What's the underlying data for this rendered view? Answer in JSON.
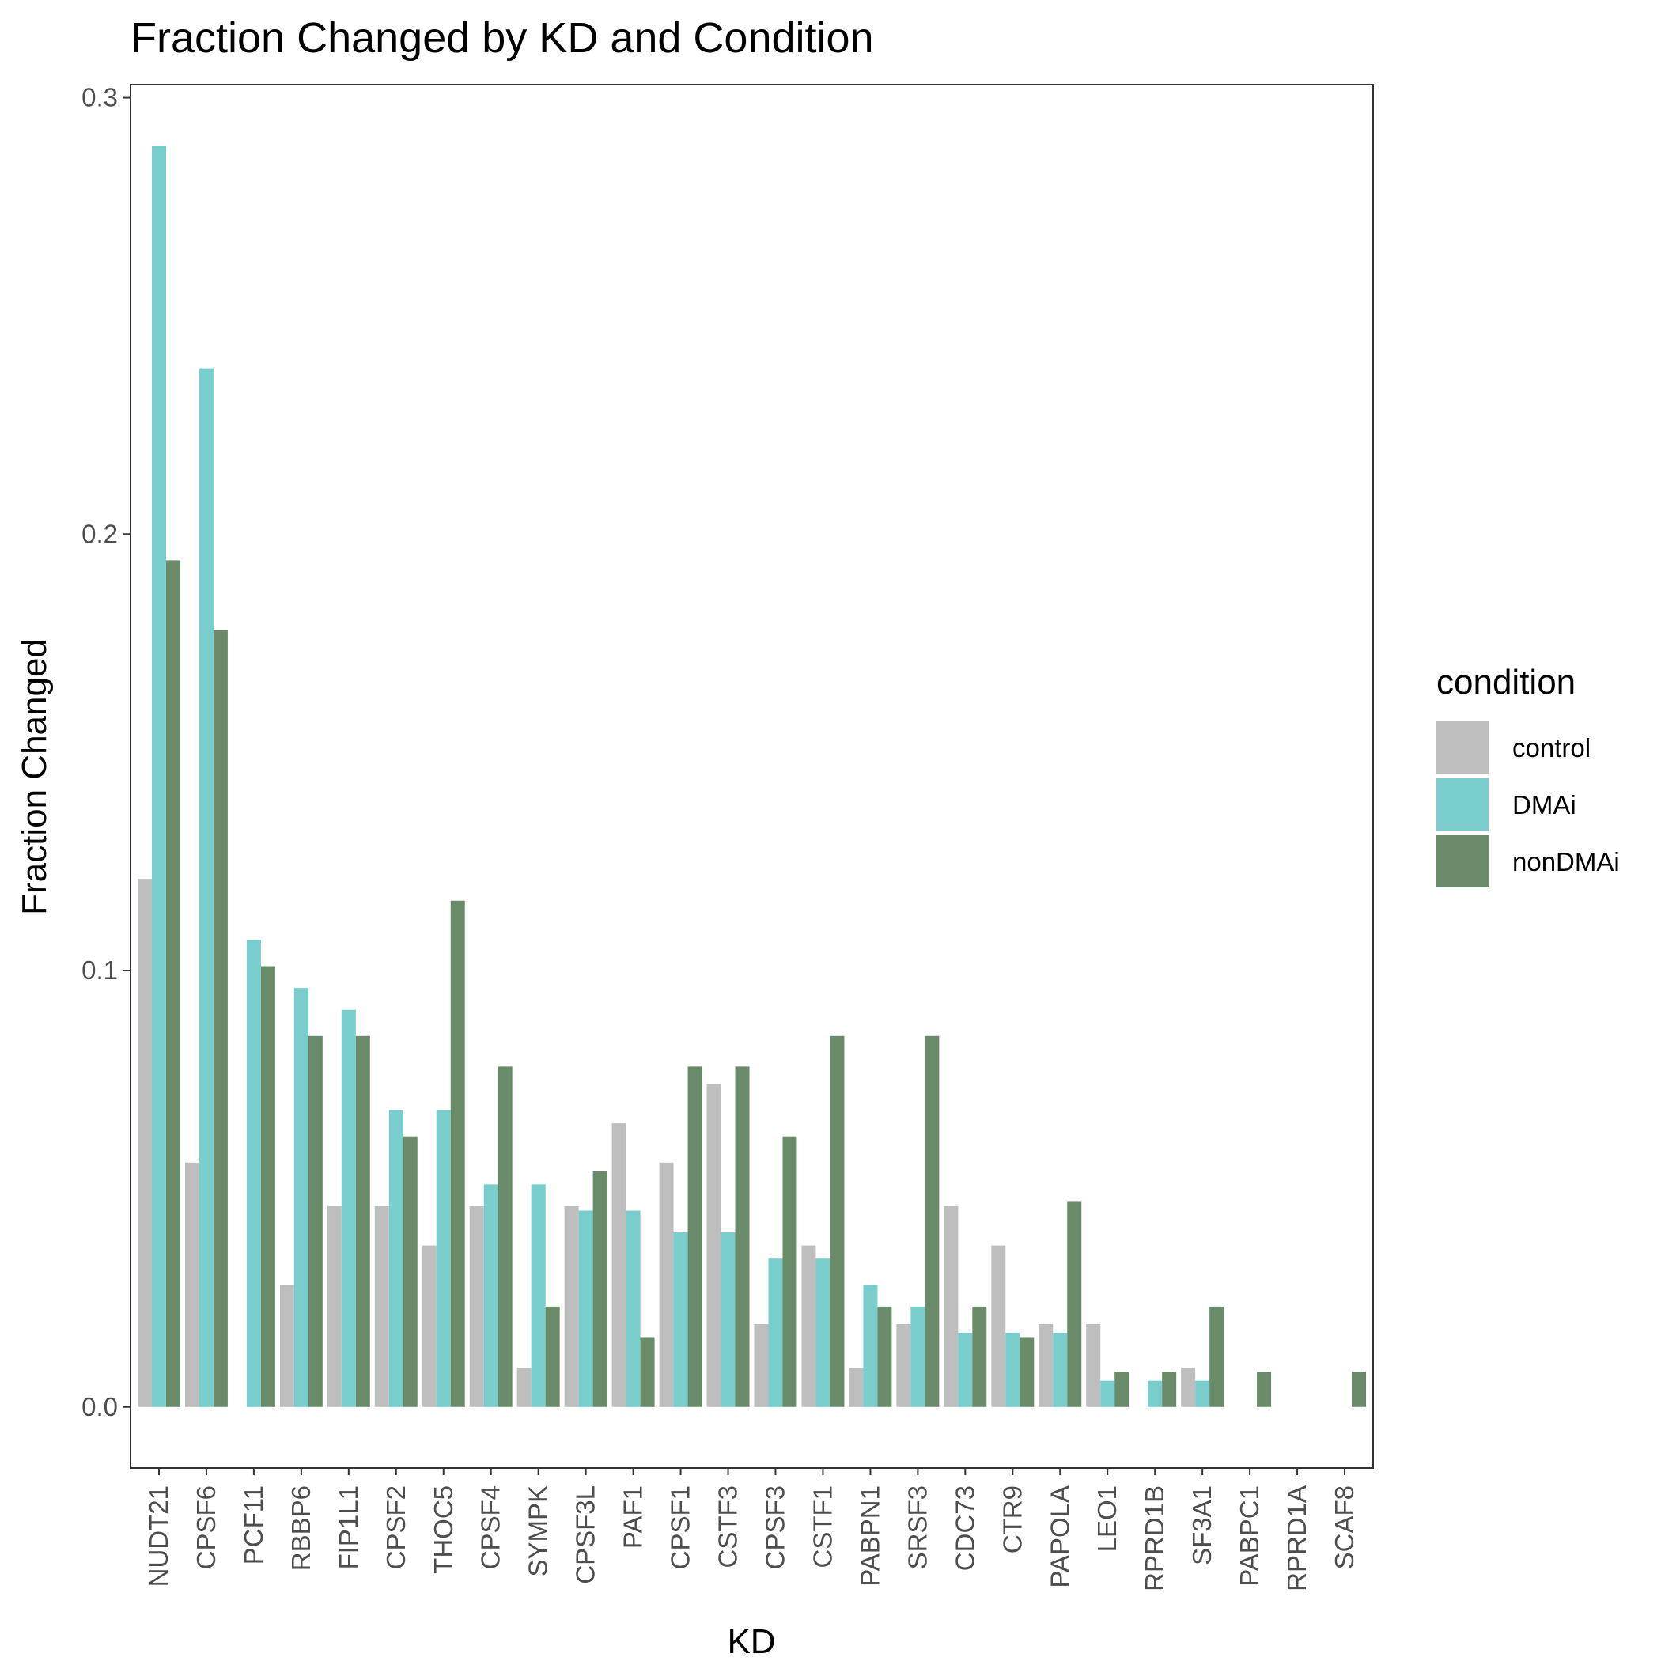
{
  "chart_data": {
    "type": "bar",
    "title": "Fraction Changed by KD and Condition",
    "xlabel": "KD",
    "ylabel": "Fraction Changed",
    "ylim": [
      -0.014,
      0.303
    ],
    "yticks": [
      "0.0",
      "0.1",
      "0.2",
      "0.3"
    ],
    "ytick_values": [
      0,
      0.1,
      0.2,
      0.3
    ],
    "grid": false,
    "legend_placement": "right",
    "legend_title": "condition",
    "categories": [
      "NUDT21",
      "CPSF6",
      "PCF11",
      "RBBP6",
      "FIP1L1",
      "CPSF2",
      "THOC5",
      "CPSF4",
      "SYMPK",
      "CPSF3L",
      "PAF1",
      "CPSF1",
      "CSTF3",
      "CPSF3",
      "CSTF1",
      "PABPN1",
      "SRSF3",
      "CDC73",
      "CTR9",
      "PAPOLA",
      "LEO1",
      "RPRD1B",
      "SF3A1",
      "PABPC1",
      "RPRD1A",
      "SCAF8"
    ],
    "series": [
      {
        "name": "control",
        "color": "#bebebe",
        "values": [
          0.121,
          0.056,
          0,
          0.028,
          0.046,
          0.046,
          0.037,
          0.046,
          0.009,
          0.046,
          0.065,
          0.056,
          0.074,
          0.019,
          0.037,
          0.009,
          0.019,
          0.046,
          0.037,
          0.019,
          0.019,
          0,
          0.009,
          0,
          0,
          0
        ]
      },
      {
        "name": "DMAi",
        "color": "#79cdcd",
        "values": [
          0.289,
          0.238,
          0.107,
          0.096,
          0.091,
          0.068,
          0.068,
          0.051,
          0.051,
          0.045,
          0.045,
          0.04,
          0.04,
          0.034,
          0.034,
          0.028,
          0.023,
          0.017,
          0.017,
          0.017,
          0.006,
          0.006,
          0.006,
          0,
          0,
          0
        ]
      },
      {
        "name": "nonDMAi",
        "color": "#698b69",
        "values": [
          0.194,
          0.178,
          0.101,
          0.085,
          0.085,
          0.062,
          0.116,
          0.078,
          0.023,
          0.054,
          0.016,
          0.078,
          0.078,
          0.062,
          0.085,
          0.023,
          0.085,
          0.023,
          0.016,
          0.047,
          0.008,
          0.008,
          0.023,
          0.008,
          0,
          0.008
        ]
      }
    ]
  }
}
